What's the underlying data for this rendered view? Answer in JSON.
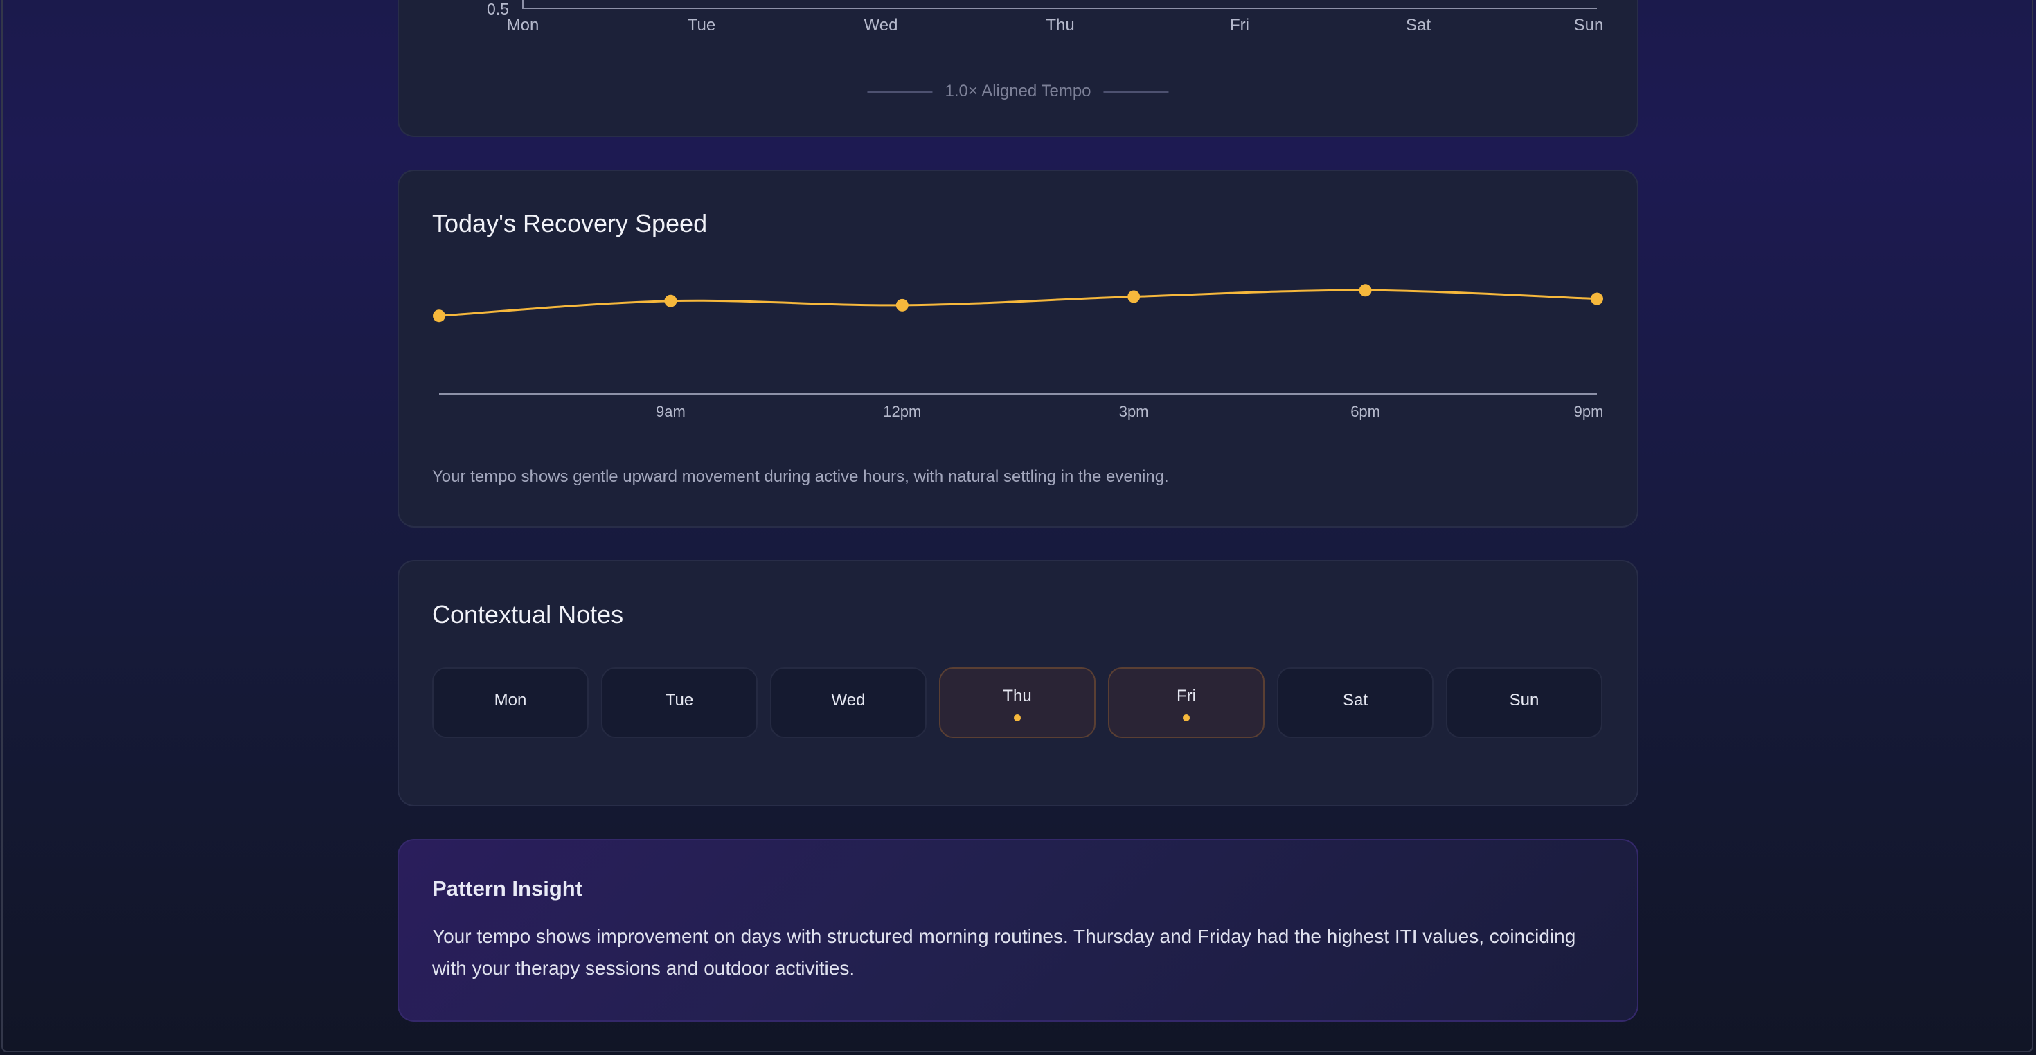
{
  "weekly_chart": {
    "y_tick": "0.5",
    "days": [
      "Mon",
      "Tue",
      "Wed",
      "Thu",
      "Fri",
      "Sat",
      "Sun"
    ],
    "legend": "1.0× Aligned Tempo"
  },
  "recovery": {
    "title": "Today's Recovery Speed",
    "caption": "Your tempo shows gentle upward movement during active hours, with natural settling in the evening.",
    "line_color": "#f6b83c",
    "chart_data": {
      "type": "line",
      "x": [
        "",
        "9am",
        "12pm",
        "3pm",
        "6pm",
        "9pm"
      ],
      "values": [
        0.86,
        0.93,
        0.91,
        0.95,
        0.98,
        0.94
      ],
      "title": "Today's Recovery Speed",
      "xlabel": "",
      "ylabel": "",
      "ylim": [
        0.5,
        1.15
      ],
      "grid": false
    }
  },
  "notes": {
    "title": "Contextual Notes",
    "days": [
      {
        "label": "Mon",
        "has_note": false
      },
      {
        "label": "Tue",
        "has_note": false
      },
      {
        "label": "Wed",
        "has_note": false
      },
      {
        "label": "Thu",
        "has_note": true
      },
      {
        "label": "Fri",
        "has_note": true
      },
      {
        "label": "Sat",
        "has_note": false
      },
      {
        "label": "Sun",
        "has_note": false
      }
    ],
    "note_color": "#f6b83c"
  },
  "insight": {
    "title": "Pattern Insight",
    "body": "Your tempo shows improvement on days with structured morning routines. Thursday and Friday had the highest ITI values, coinciding with your therapy sessions and outdoor activities."
  }
}
